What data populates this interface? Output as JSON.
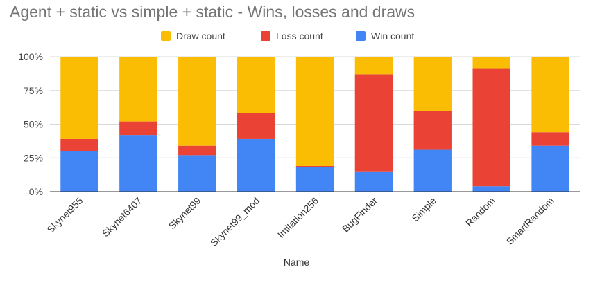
{
  "chart_data": {
    "type": "bar",
    "stacked": "percent",
    "title": "Agent + static vs simple + static - Wins, losses and draws",
    "xlabel": "Name",
    "ylabel": "",
    "ylim": [
      0,
      100
    ],
    "yticks": [
      "0%",
      "25%",
      "50%",
      "75%",
      "100%"
    ],
    "grid": true,
    "legend_position": "top",
    "categories": [
      "Skynet955",
      "Skynet6407",
      "Skynet99",
      "Skynet99_mod",
      "Imitation256",
      "BugFinder",
      "Simple",
      "Random",
      "SmartRandom"
    ],
    "series": [
      {
        "name": "Win count",
        "color": "#4285f4",
        "values": [
          30,
          42,
          27,
          39,
          18,
          15,
          31,
          4,
          34
        ]
      },
      {
        "name": "Loss count",
        "color": "#ea4335",
        "values": [
          9,
          10,
          7,
          19,
          1,
          72,
          29,
          87,
          10
        ]
      },
      {
        "name": "Draw count",
        "color": "#fbbc04",
        "values": [
          61,
          48,
          66,
          42,
          81,
          13,
          40,
          9,
          56
        ]
      }
    ],
    "legend_order": [
      "Draw count",
      "Loss count",
      "Win count"
    ]
  }
}
